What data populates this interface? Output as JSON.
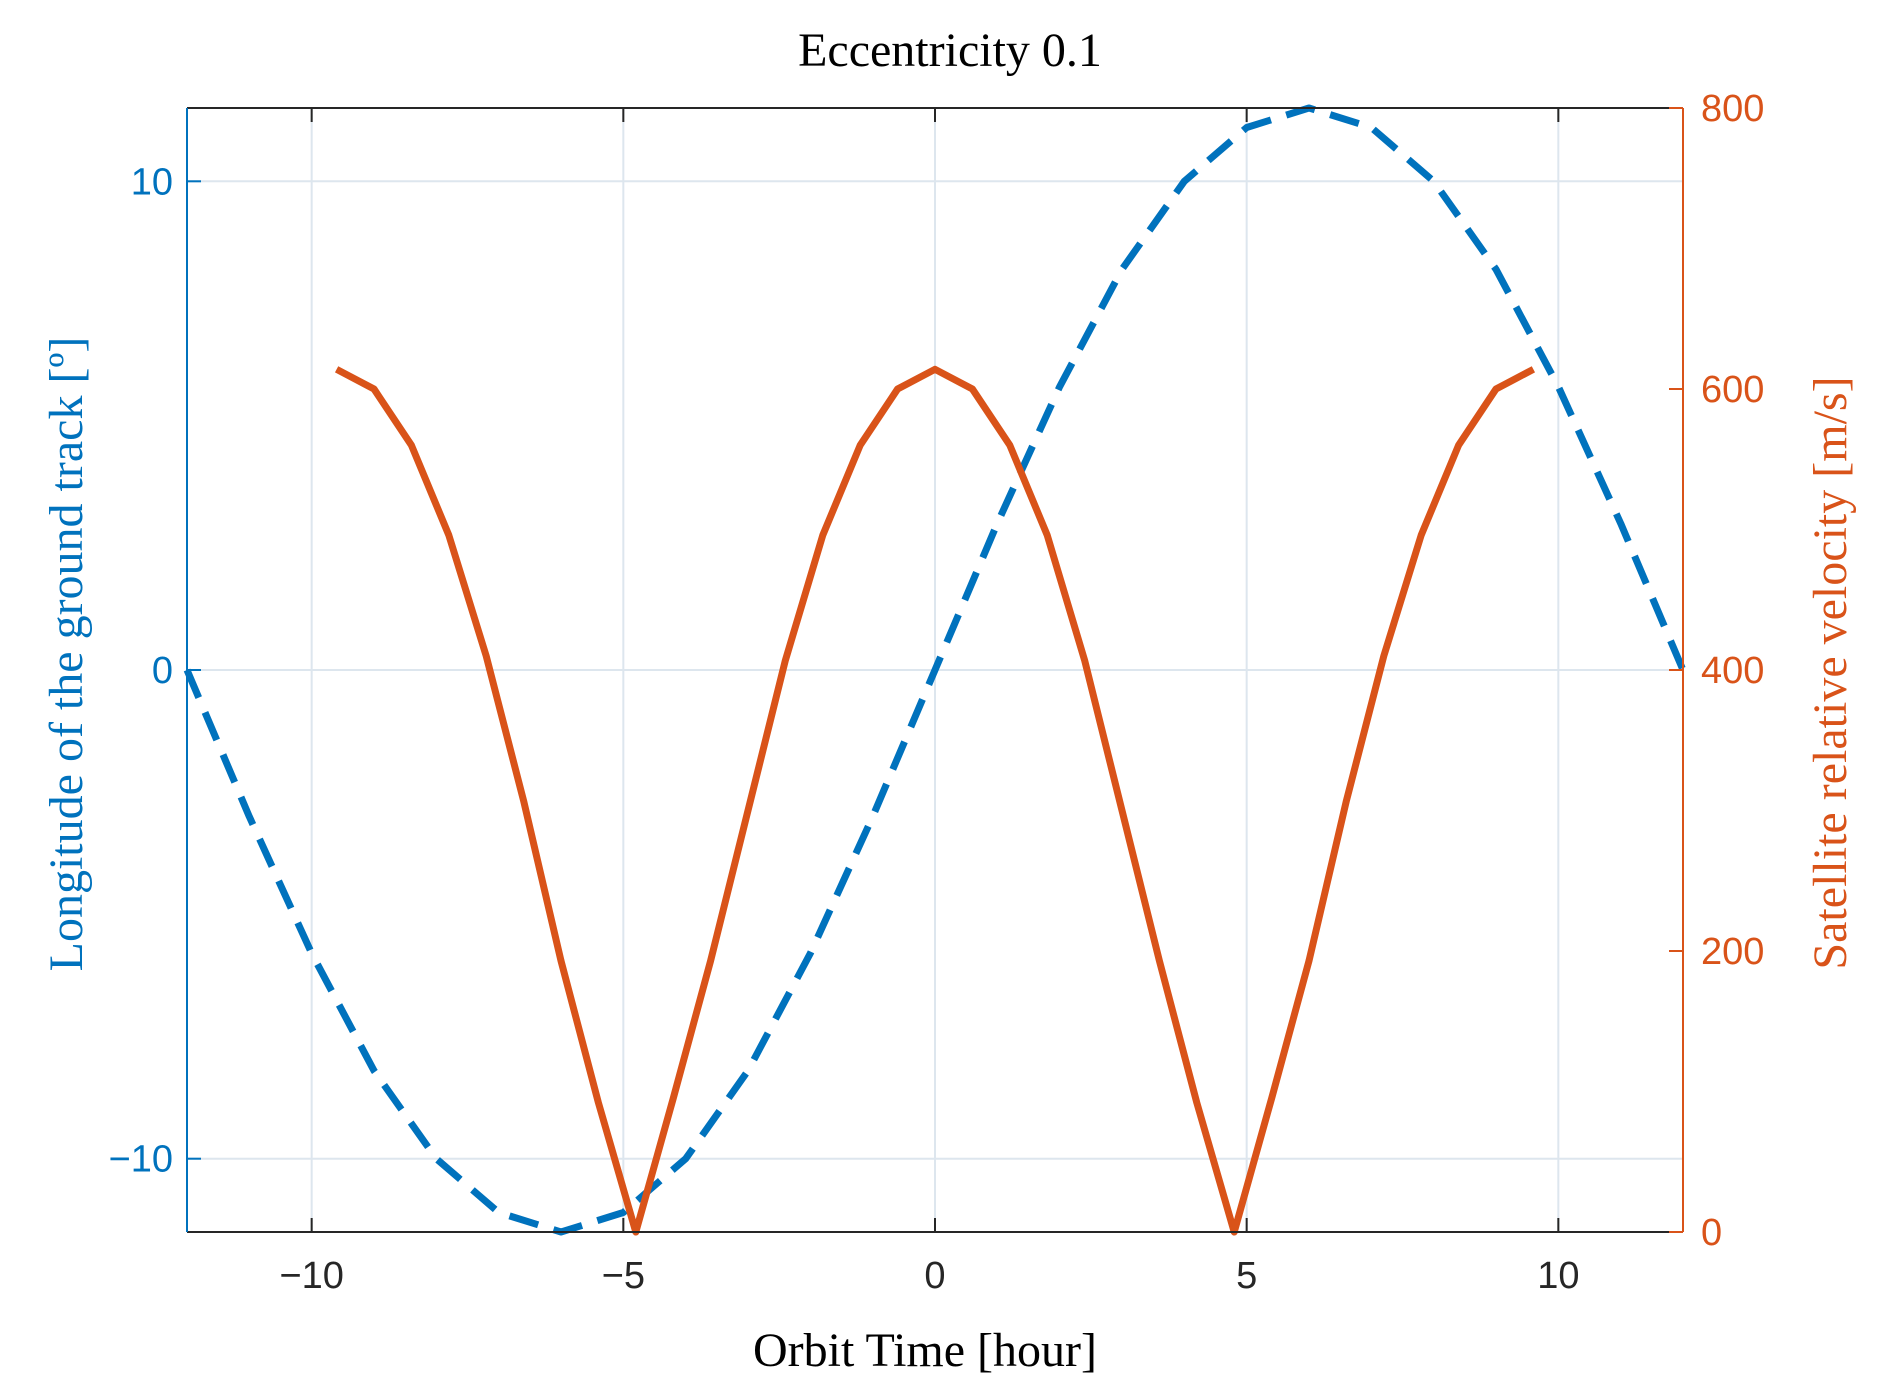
{
  "chart_data": {
    "type": "line",
    "title": "Eccentricity 0.1",
    "xlabel": "Orbit Time [hour]",
    "ylabel_left": "Longitude of the ground track [º]",
    "ylabel_right": "Satellite relative velocity [m/s]",
    "xlim": [
      -12,
      12
    ],
    "ylim_left": [
      -11.5,
      11.5
    ],
    "ylim_right": [
      0,
      800
    ],
    "x_ticks": [
      -10,
      -5,
      0,
      5,
      10
    ],
    "x_tick_labels": [
      "−10",
      "−5",
      "0",
      "5",
      "10"
    ],
    "y_left_ticks": [
      -10,
      0,
      10
    ],
    "y_left_tick_labels": [
      "−10",
      "0",
      "10"
    ],
    "y_right_ticks": [
      0,
      200,
      400,
      600,
      800
    ],
    "y_right_tick_labels": [
      "0",
      "200",
      "400",
      "600",
      "800"
    ],
    "grid": true,
    "colors": {
      "left": "#0072BD",
      "right": "#D95319",
      "grid": "#dde6ee",
      "axis": "#262626"
    },
    "series": [
      {
        "name": "Longitude of the ground track",
        "axis": "left",
        "style": "dashed",
        "color": "#0072BD",
        "x": [
          -12,
          -11,
          -10,
          -9,
          -8,
          -7,
          -6,
          -5,
          -4,
          -3,
          -2,
          -1,
          0,
          1,
          2,
          3,
          4,
          5,
          6,
          7,
          8,
          9,
          10,
          11,
          12
        ],
        "y": [
          0,
          -3.0,
          -5.8,
          -8.2,
          -10.0,
          -11.1,
          -11.5,
          -11.1,
          -10.0,
          -8.2,
          -5.8,
          -3.0,
          0,
          3.0,
          5.8,
          8.2,
          10.0,
          11.1,
          11.5,
          11.1,
          10.0,
          8.2,
          5.8,
          3.0,
          0
        ]
      },
      {
        "name": "Satellite relative velocity",
        "axis": "right",
        "style": "solid",
        "color": "#D95319",
        "x": [
          -9.6,
          -9.0,
          -8.4,
          -7.8,
          -7.2,
          -6.6,
          -6.0,
          -5.4,
          -4.8,
          -4.2,
          -3.6,
          -3.0,
          -2.4,
          -1.8,
          -1.2,
          -0.6,
          0,
          0.6,
          1.2,
          1.8,
          2.4,
          3.0,
          3.6,
          4.2,
          4.8,
          5.4,
          6.0,
          6.6,
          7.2,
          7.8,
          8.4,
          9.0,
          9.6
        ],
        "y": [
          614,
          600,
          560,
          496,
          410,
          307,
          193,
          92,
          0,
          95,
          193,
          300,
          407,
          496,
          560,
          600,
          614,
          600,
          560,
          496,
          407,
          300,
          193,
          92,
          0,
          95,
          193,
          307,
          410,
          496,
          560,
          600,
          614
        ]
      }
    ]
  }
}
